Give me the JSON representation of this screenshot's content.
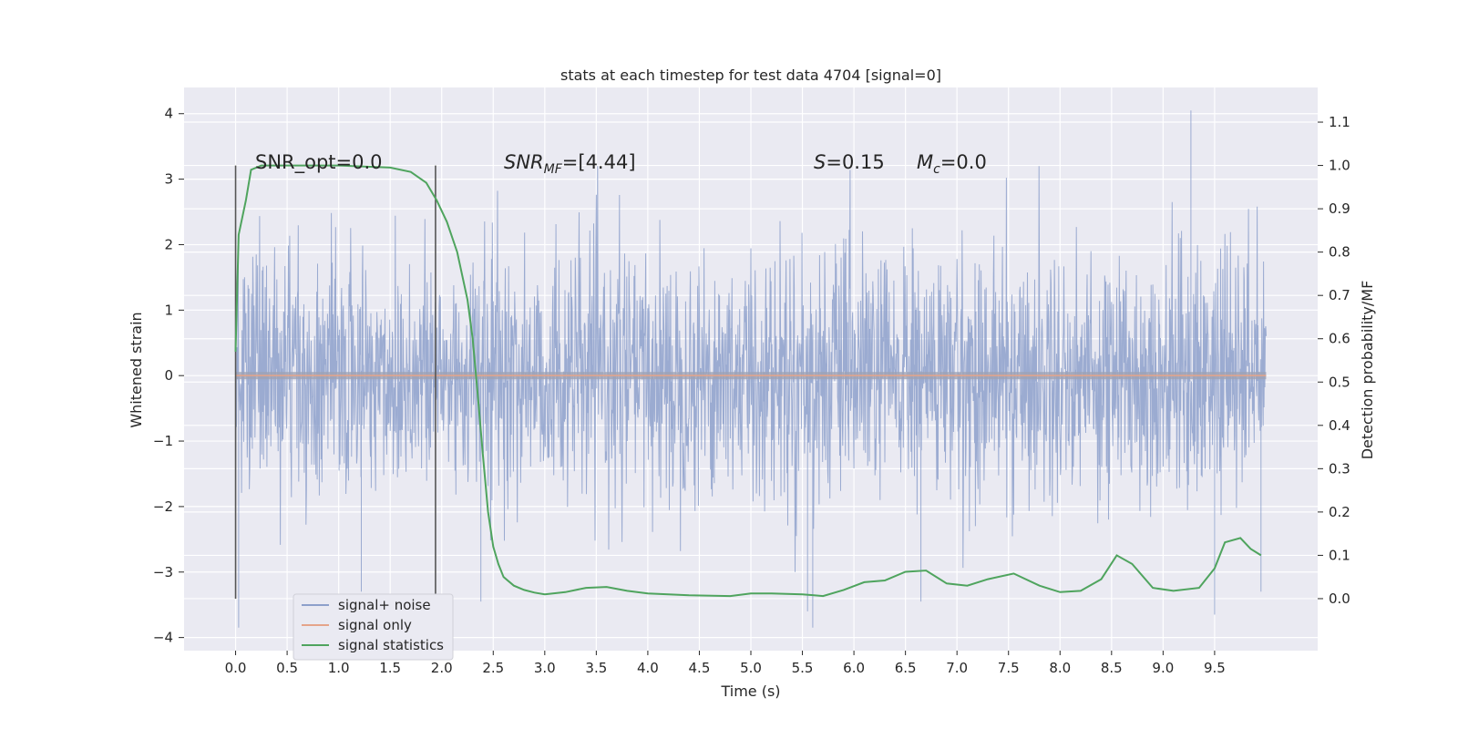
{
  "chart_data": {
    "type": "line",
    "title": "stats at each timestep for test data 4704 [signal=0]",
    "xlabel": "Time (s)",
    "ylabel_left": "Whitened strain",
    "ylabel_right": "Detection probability/MF",
    "xlim": [
      -0.5,
      10.5
    ],
    "ylim_left": [
      -4.2,
      4.4
    ],
    "ylim_right": [
      -0.12,
      1.18
    ],
    "x_ticks": [
      "0.0",
      "0.5",
      "1.0",
      "1.5",
      "2.0",
      "2.5",
      "3.0",
      "3.5",
      "4.0",
      "4.5",
      "5.0",
      "5.5",
      "6.0",
      "6.5",
      "7.0",
      "7.5",
      "8.0",
      "8.5",
      "9.0",
      "9.5"
    ],
    "y_ticks_left": [
      "4",
      "3",
      "2",
      "1",
      "0",
      "−1",
      "−2",
      "−3",
      "−4"
    ],
    "y_ticks_right": [
      "1.1",
      "1.0",
      "0.9",
      "0.8",
      "0.7",
      "0.6",
      "0.5",
      "0.4",
      "0.3",
      "0.2",
      "0.1",
      "0.0"
    ],
    "grid": true,
    "legend_position": "lower-left",
    "legend": [
      {
        "label": "signal+ noise",
        "color": "#8da0cb"
      },
      {
        "label": "signal only",
        "color": "#e5a48a"
      },
      {
        "label": "signal statistics",
        "color": "#4fa45e"
      }
    ],
    "vertical_markers_x": [
      0.0,
      1.94
    ],
    "annotations": {
      "snr_opt": "SNR_opt=0.0",
      "snr_mf_main": "SNR",
      "snr_mf_sub": "MF",
      "snr_mf_val": "=[4.44]",
      "s_main": "S",
      "s_val": "=0.15",
      "mc_main": "M",
      "mc_sub": "c",
      "mc_val": "=0.0"
    },
    "series": [
      {
        "name": "signal+ noise",
        "axis": "left",
        "x_range": [
          0.0,
          10.0
        ],
        "typical_amplitude": 1.4,
        "extreme_peaks": [
          {
            "x": 9.27,
            "y": 4.05
          },
          {
            "x": 0.03,
            "y": -3.85
          },
          {
            "x": 5.6,
            "y": -3.85
          },
          {
            "x": 1.22,
            "y": -3.3
          },
          {
            "x": 2.38,
            "y": -3.45
          },
          {
            "x": 6.65,
            "y": -3.45
          },
          {
            "x": 9.5,
            "y": -3.65
          },
          {
            "x": 5.55,
            "y": -3.6
          },
          {
            "x": 9.95,
            "y": -3.3
          }
        ]
      },
      {
        "name": "signal only",
        "axis": "left",
        "x": [
          0.0,
          10.0
        ],
        "y": [
          0.0,
          0.0
        ]
      },
      {
        "name": "signal statistics",
        "axis": "right",
        "x": [
          0.0,
          0.03,
          0.1,
          0.15,
          0.25,
          0.5,
          1.0,
          1.5,
          1.7,
          1.85,
          1.95,
          2.05,
          2.15,
          2.25,
          2.3,
          2.35,
          2.4,
          2.45,
          2.5,
          2.55,
          2.6,
          2.7,
          2.8,
          2.9,
          3.0,
          3.2,
          3.4,
          3.6,
          3.8,
          4.0,
          4.4,
          4.8,
          5.0,
          5.2,
          5.5,
          5.7,
          5.9,
          6.1,
          6.3,
          6.5,
          6.7,
          6.9,
          7.1,
          7.3,
          7.55,
          7.8,
          8.0,
          8.2,
          8.4,
          8.55,
          8.7,
          8.9,
          9.1,
          9.35,
          9.5,
          9.6,
          9.75,
          9.85,
          9.95
        ],
        "y": [
          0.57,
          0.84,
          0.92,
          0.99,
          1.0,
          1.0,
          1.0,
          0.995,
          0.985,
          0.96,
          0.92,
          0.87,
          0.8,
          0.69,
          0.6,
          0.47,
          0.33,
          0.2,
          0.12,
          0.08,
          0.05,
          0.03,
          0.02,
          0.014,
          0.01,
          0.015,
          0.025,
          0.027,
          0.018,
          0.012,
          0.008,
          0.006,
          0.012,
          0.012,
          0.01,
          0.006,
          0.02,
          0.038,
          0.042,
          0.062,
          0.065,
          0.035,
          0.03,
          0.045,
          0.058,
          0.03,
          0.015,
          0.018,
          0.045,
          0.1,
          0.08,
          0.025,
          0.018,
          0.025,
          0.07,
          0.13,
          0.14,
          0.115,
          0.1
        ]
      }
    ]
  }
}
